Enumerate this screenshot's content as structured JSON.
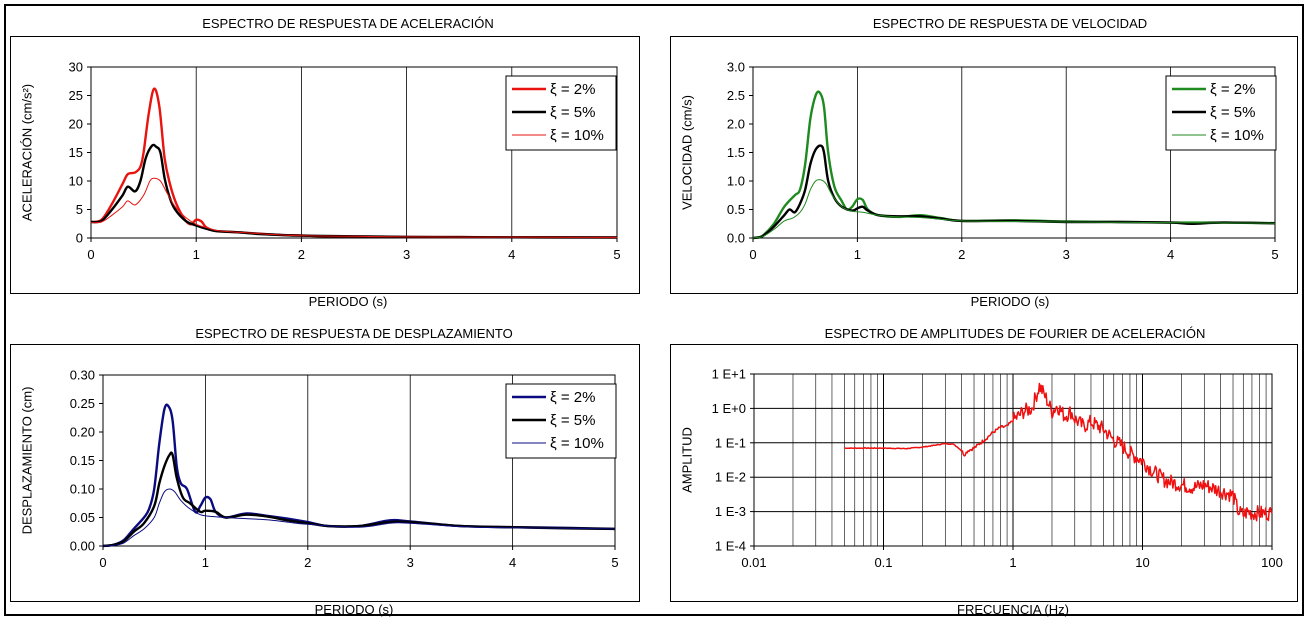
{
  "colors": {
    "red": "#e8140f",
    "black": "#000000",
    "green": "#1f8a1f",
    "navy": "#0b0b80",
    "fourier": "#f01010"
  },
  "chart_data": [
    {
      "id": "accel",
      "type": "line",
      "title": "ESPECTRO DE RESPUESTA DE ACELERACIÓN",
      "xlabel": "PERIODO (s)",
      "ylabel": "ACELERACIÓN (cm/s²)",
      "xlim": [
        0,
        5
      ],
      "ylim": [
        0,
        30
      ],
      "xticks": [
        "0",
        "1",
        "2",
        "3",
        "4",
        "5"
      ],
      "yticks": [
        "0",
        "5",
        "10",
        "15",
        "20",
        "25",
        "30"
      ],
      "grid": "vertical",
      "legend": "top-right",
      "series": [
        {
          "name": "ξ = 2%",
          "color": "#e8140f",
          "width": 2.4,
          "x": [
            0,
            0.1,
            0.2,
            0.3,
            0.35,
            0.42,
            0.47,
            0.5,
            0.55,
            0.6,
            0.65,
            0.7,
            0.75,
            0.8,
            0.85,
            0.9,
            0.95,
            1.0,
            1.05,
            1.1,
            1.2,
            1.4,
            1.6,
            1.8,
            2.0,
            2.2,
            2.6,
            3.0,
            3.5,
            4.0,
            4.5,
            5.0
          ],
          "y": [
            2.8,
            3.2,
            6.0,
            9.5,
            11.2,
            11.5,
            12.5,
            15,
            22,
            26.2,
            23,
            14,
            9.5,
            6.5,
            4.5,
            3.0,
            2.4,
            3.2,
            2.9,
            1.8,
            1.2,
            1.0,
            0.75,
            0.55,
            0.45,
            0.3,
            0.25,
            0.2,
            0.15,
            0.12,
            0.1,
            0.08
          ]
        },
        {
          "name": "ξ = 5%",
          "color": "#000000",
          "width": 2.4,
          "x": [
            0,
            0.1,
            0.2,
            0.3,
            0.35,
            0.42,
            0.47,
            0.52,
            0.58,
            0.62,
            0.66,
            0.7,
            0.75,
            0.8,
            0.9,
            1.0,
            1.1,
            1.2,
            1.4,
            1.6,
            1.8,
            2.0,
            2.5,
            3.0,
            3.5,
            4.0,
            5.0
          ],
          "y": [
            2.8,
            3.0,
            5.0,
            7.5,
            9.0,
            8.2,
            10.0,
            14.0,
            16.2,
            16.0,
            15.0,
            10.5,
            7.0,
            5.0,
            3.0,
            2.2,
            1.6,
            1.2,
            1.0,
            0.7,
            0.55,
            0.4,
            0.3,
            0.2,
            0.15,
            0.12,
            0.1
          ]
        },
        {
          "name": "ξ = 10%",
          "color": "#e8140f",
          "width": 1.0,
          "x": [
            0,
            0.1,
            0.2,
            0.3,
            0.35,
            0.42,
            0.5,
            0.56,
            0.6,
            0.66,
            0.72,
            0.8,
            0.9,
            1.0,
            1.1,
            1.2,
            1.4,
            1.6,
            1.8,
            2.0,
            2.5,
            3.0,
            4.0,
            5.0
          ],
          "y": [
            2.7,
            2.8,
            4.0,
            5.5,
            6.5,
            5.8,
            7.5,
            10.0,
            10.5,
            10.0,
            8.0,
            5.5,
            3.6,
            2.4,
            1.8,
            1.3,
            1.0,
            0.75,
            0.55,
            0.4,
            0.3,
            0.2,
            0.15,
            0.1
          ]
        }
      ]
    },
    {
      "id": "veloc",
      "type": "line",
      "title": "ESPECTRO DE RESPUESTA DE VELOCIDAD",
      "xlabel": "PERIODO (s)",
      "ylabel": "VELOCIDAD (cm/s)",
      "xlim": [
        0,
        5
      ],
      "ylim": [
        0,
        3
      ],
      "xticks": [
        "0",
        "1",
        "2",
        "3",
        "4",
        "5"
      ],
      "yticks": [
        "0.0",
        "0.5",
        "1.0",
        "1.5",
        "2.0",
        "2.5",
        "3.0"
      ],
      "grid": "vertical",
      "legend": "top-right",
      "series": [
        {
          "name": "ξ = 2%",
          "color": "#1f8a1f",
          "width": 2.4,
          "x": [
            0,
            0.05,
            0.1,
            0.2,
            0.3,
            0.4,
            0.45,
            0.5,
            0.55,
            0.6,
            0.64,
            0.68,
            0.72,
            0.78,
            0.85,
            0.9,
            0.95,
            1.0,
            1.05,
            1.1,
            1.2,
            1.4,
            1.6,
            1.8,
            2.0,
            2.5,
            3.0,
            3.5,
            4.0,
            4.5,
            5.0
          ],
          "y": [
            0,
            0.01,
            0.05,
            0.25,
            0.55,
            0.75,
            0.85,
            1.3,
            2.1,
            2.5,
            2.55,
            2.3,
            1.5,
            0.9,
            0.65,
            0.5,
            0.55,
            0.68,
            0.67,
            0.5,
            0.4,
            0.37,
            0.4,
            0.35,
            0.3,
            0.31,
            0.29,
            0.28,
            0.27,
            0.27,
            0.26
          ]
        },
        {
          "name": "ξ = 5%",
          "color": "#000000",
          "width": 2.4,
          "x": [
            0,
            0.05,
            0.1,
            0.2,
            0.3,
            0.35,
            0.4,
            0.45,
            0.5,
            0.55,
            0.6,
            0.65,
            0.68,
            0.72,
            0.78,
            0.85,
            0.95,
            1.0,
            1.05,
            1.1,
            1.2,
            1.4,
            1.6,
            1.8,
            2.0,
            2.5,
            3.0,
            3.5,
            4.0,
            4.2,
            4.5,
            5.0
          ],
          "y": [
            0,
            0.01,
            0.04,
            0.2,
            0.4,
            0.5,
            0.45,
            0.6,
            0.85,
            1.3,
            1.55,
            1.62,
            1.5,
            1.0,
            0.7,
            0.55,
            0.48,
            0.52,
            0.55,
            0.48,
            0.4,
            0.38,
            0.38,
            0.34,
            0.3,
            0.3,
            0.28,
            0.28,
            0.27,
            0.25,
            0.27,
            0.26
          ]
        },
        {
          "name": "ξ = 10%",
          "color": "#1f8a1f",
          "width": 1.0,
          "x": [
            0,
            0.05,
            0.1,
            0.2,
            0.3,
            0.38,
            0.45,
            0.5,
            0.55,
            0.6,
            0.65,
            0.7,
            0.76,
            0.85,
            0.95,
            1.05,
            1.2,
            1.4,
            1.6,
            1.8,
            2.0,
            2.5,
            3.0,
            4.0,
            5.0
          ],
          "y": [
            0,
            0.01,
            0.03,
            0.15,
            0.3,
            0.35,
            0.45,
            0.6,
            0.85,
            1.0,
            1.02,
            0.95,
            0.75,
            0.55,
            0.47,
            0.45,
            0.4,
            0.37,
            0.36,
            0.33,
            0.3,
            0.29,
            0.28,
            0.27,
            0.26
          ]
        }
      ]
    },
    {
      "id": "despl",
      "type": "line",
      "title": "ESPECTRO DE RESPUESTA DE DESPLAZAMIENTO",
      "xlabel": "PERIODO (s)",
      "ylabel": "DESPLAZAMIENTO (cm)",
      "xlim": [
        0,
        5
      ],
      "ylim": [
        0,
        0.3
      ],
      "xticks": [
        "0",
        "1",
        "2",
        "3",
        "4",
        "5"
      ],
      "yticks": [
        "0.00",
        "0.05",
        "0.10",
        "0.15",
        "0.20",
        "0.25",
        "0.30"
      ],
      "grid": "vertical",
      "legend": "top-right",
      "series": [
        {
          "name": "ξ = 2%",
          "color": "#0b0b80",
          "width": 2.4,
          "x": [
            0,
            0.1,
            0.2,
            0.3,
            0.4,
            0.45,
            0.5,
            0.55,
            0.6,
            0.64,
            0.68,
            0.72,
            0.76,
            0.82,
            0.9,
            0.95,
            1.0,
            1.05,
            1.1,
            1.2,
            1.4,
            1.6,
            1.8,
            2.0,
            2.2,
            2.5,
            2.8,
            3.0,
            3.5,
            4.0,
            4.5,
            5.0
          ],
          "y": [
            0,
            0.002,
            0.01,
            0.03,
            0.05,
            0.065,
            0.1,
            0.18,
            0.24,
            0.245,
            0.22,
            0.14,
            0.11,
            0.1,
            0.06,
            0.07,
            0.085,
            0.082,
            0.06,
            0.05,
            0.057,
            0.053,
            0.048,
            0.042,
            0.035,
            0.035,
            0.045,
            0.043,
            0.035,
            0.033,
            0.032,
            0.03
          ]
        },
        {
          "name": "ξ = 5%",
          "color": "#000000",
          "width": 2.4,
          "x": [
            0,
            0.1,
            0.2,
            0.3,
            0.4,
            0.5,
            0.55,
            0.6,
            0.65,
            0.68,
            0.72,
            0.78,
            0.85,
            0.95,
            1.0,
            1.1,
            1.2,
            1.4,
            1.6,
            1.8,
            2.0,
            2.2,
            2.5,
            2.8,
            3.0,
            3.5,
            4.0,
            4.5,
            5.0
          ],
          "y": [
            0,
            0.002,
            0.008,
            0.025,
            0.04,
            0.07,
            0.11,
            0.14,
            0.16,
            0.16,
            0.12,
            0.085,
            0.075,
            0.06,
            0.062,
            0.06,
            0.05,
            0.055,
            0.052,
            0.045,
            0.04,
            0.035,
            0.035,
            0.042,
            0.042,
            0.035,
            0.033,
            0.031,
            0.03
          ]
        },
        {
          "name": "ξ = 10%",
          "color": "#0b0b80",
          "width": 1.0,
          "x": [
            0,
            0.1,
            0.2,
            0.3,
            0.4,
            0.5,
            0.55,
            0.6,
            0.65,
            0.7,
            0.76,
            0.85,
            0.95,
            1.05,
            1.2,
            1.4,
            1.6,
            1.8,
            2.0,
            2.5,
            2.8,
            3.0,
            3.5,
            4.0,
            4.5,
            5.0
          ],
          "y": [
            0,
            0.001,
            0.005,
            0.018,
            0.03,
            0.05,
            0.075,
            0.095,
            0.1,
            0.095,
            0.08,
            0.065,
            0.055,
            0.052,
            0.05,
            0.048,
            0.046,
            0.042,
            0.038,
            0.033,
            0.04,
            0.04,
            0.034,
            0.032,
            0.031,
            0.03
          ]
        }
      ]
    },
    {
      "id": "fourier",
      "type": "line",
      "title": "ESPECTRO DE AMPLITUDES DE FOURIER DE ACELERACIÓN",
      "xlabel": "FRECUENCIA (Hz)",
      "ylabel": "AMPLITUD",
      "xscale": "log",
      "yscale": "log",
      "xlim": [
        0.01,
        100
      ],
      "ylim": [
        0.0001,
        10
      ],
      "xticks": [
        "0.01",
        "0.1",
        "1",
        "10",
        "100"
      ],
      "yticks": [
        "1 E-4",
        "1 E-3",
        "1 E-2",
        "1 E-1",
        "1 E+0",
        "1 E+1"
      ],
      "grid": "both",
      "series": [
        {
          "name": "",
          "color": "#f01010",
          "width": 1.5,
          "x": [
            0.05,
            0.08,
            0.1,
            0.15,
            0.2,
            0.25,
            0.3,
            0.35,
            0.4,
            0.42,
            0.45,
            0.5,
            0.6,
            0.7,
            0.8,
            0.9,
            1.0,
            1.1,
            1.2,
            1.4,
            1.6,
            1.7,
            1.8,
            2.0,
            2.2,
            2.5,
            2.8,
            3.0,
            3.5,
            4.0,
            5.0,
            6.0,
            7.0,
            8.0,
            10,
            12,
            15,
            20,
            25,
            30,
            40,
            50,
            55,
            60,
            65,
            70,
            80,
            100
          ],
          "y": [
            0.07,
            0.07,
            0.07,
            0.068,
            0.075,
            0.085,
            0.095,
            0.09,
            0.06,
            0.045,
            0.06,
            0.07,
            0.12,
            0.2,
            0.28,
            0.3,
            0.45,
            0.6,
            0.8,
            1.0,
            4.5,
            3.0,
            2.0,
            0.8,
            1.2,
            0.6,
            0.8,
            0.5,
            0.3,
            0.4,
            0.25,
            0.12,
            0.08,
            0.05,
            0.03,
            0.015,
            0.008,
            0.006,
            0.005,
            0.006,
            0.004,
            0.003,
            0.001,
            0.0008,
            0.001,
            0.0009,
            0.0009,
            0.0009
          ]
        }
      ]
    }
  ]
}
